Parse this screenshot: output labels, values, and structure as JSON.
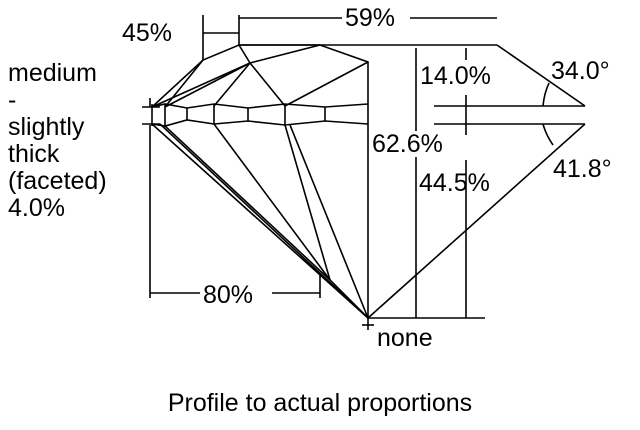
{
  "diagram": {
    "caption": "Profile to actual proportions",
    "labels": {
      "star_length": "45%",
      "table": "59%",
      "crown_height": "14.0%",
      "crown_angle": "34.0°",
      "total_depth": "62.6%",
      "pavilion_depth": "44.5%",
      "pavilion_angle": "41.8°",
      "lower_half_length": "80%",
      "culet": "none"
    },
    "girdle": [
      "medium",
      "-",
      "slightly",
      "thick",
      "(faceted)",
      "4.0%"
    ]
  }
}
